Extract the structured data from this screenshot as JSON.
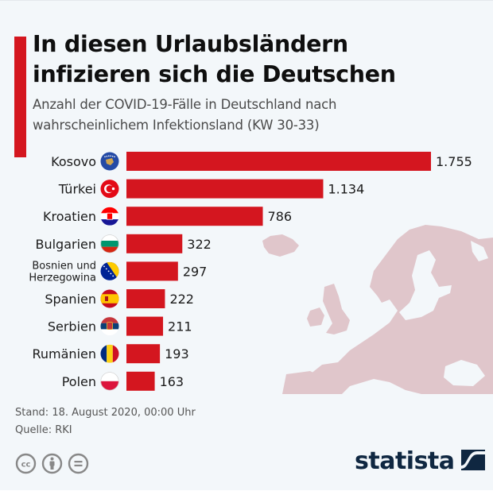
{
  "header": {
    "title_line1": "In diesen Urlaubsländern",
    "title_line2": "infizieren sich die Deutschen",
    "subtitle_line1": "Anzahl der COVID-19-Fälle in Deutschland nach",
    "subtitle_line2": "wahrscheinlichem Infektionsland (KW 30-33)"
  },
  "colors": {
    "bar": "#d4161f",
    "accent": "#d4161f",
    "map": "#e0c6cb",
    "background": "#f3f7fa",
    "logo": "#0f2741"
  },
  "chart_data": {
    "type": "bar",
    "orientation": "horizontal",
    "title": "In diesen Urlaubsländern infizieren sich die Deutschen",
    "subtitle": "Anzahl der COVID-19-Fälle in Deutschland nach wahrscheinlichem Infektionsland (KW 30-33)",
    "xlabel": "",
    "ylabel": "",
    "categories": [
      "Kosovo",
      "Türkei",
      "Kroatien",
      "Bulgarien",
      "Bosnien und Herzegowina",
      "Spanien",
      "Serbien",
      "Rumänien",
      "Polen"
    ],
    "category_lines": [
      [
        "Kosovo"
      ],
      [
        "Türkei"
      ],
      [
        "Kroatien"
      ],
      [
        "Bulgarien"
      ],
      [
        "Bosnien und",
        "Herzegowina"
      ],
      [
        "Spanien"
      ],
      [
        "Serbien"
      ],
      [
        "Rumänien"
      ],
      [
        "Polen"
      ]
    ],
    "values": [
      1755,
      1134,
      786,
      322,
      297,
      222,
      211,
      193,
      163
    ],
    "value_labels": [
      "1.755",
      "1.134",
      "786",
      "322",
      "297",
      "222",
      "211",
      "193",
      "163"
    ],
    "flags": [
      "kosovo-flag",
      "turkey-flag",
      "croatia-flag",
      "bulgaria-flag",
      "bosnia-flag",
      "spain-flag",
      "serbia-flag",
      "romania-flag",
      "poland-flag"
    ],
    "xlim": [
      0,
      1755
    ],
    "grid": false,
    "legend": "none"
  },
  "footer": {
    "date": "Stand: 18. August 2020, 00:00 Uhr",
    "source": "Quelle: RKI"
  },
  "license_icons": [
    "creative-commons-icon",
    "attribution-icon",
    "no-derivatives-icon"
  ],
  "brand": {
    "name": "statista"
  }
}
